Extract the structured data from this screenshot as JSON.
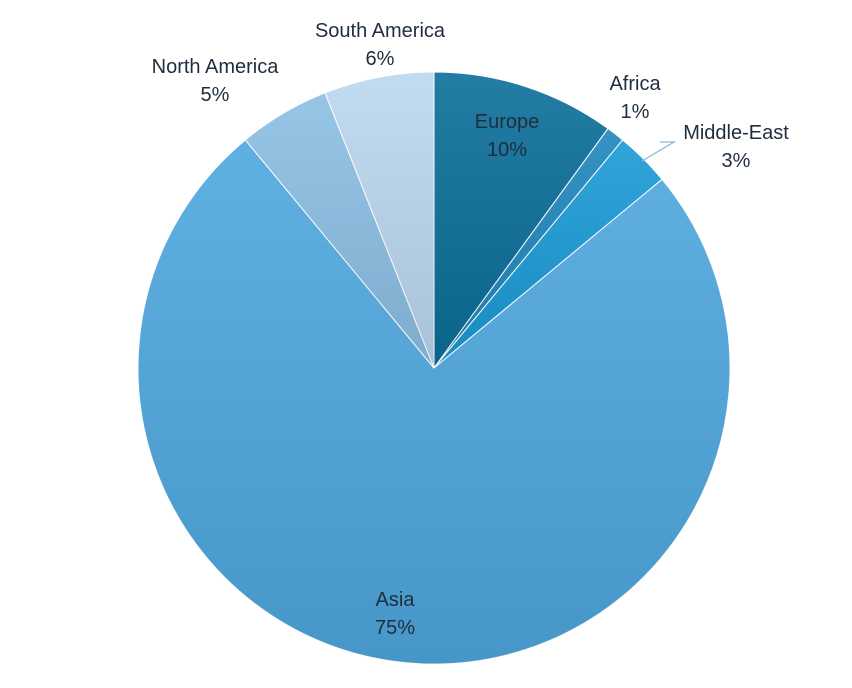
{
  "chart_data": {
    "type": "pie",
    "title": "",
    "start_angle_deg": 0,
    "direction": "clockwise",
    "legend": "none",
    "slices": [
      {
        "label": "Europe",
        "value": 10,
        "display": "10%",
        "color": "#0b6e99"
      },
      {
        "label": "Africa",
        "value": 1,
        "display": "1%",
        "color": "#1f87bd"
      },
      {
        "label": "Middle-East",
        "value": 3,
        "display": "3%",
        "color": "#1a9ad6"
      },
      {
        "label": "Asia",
        "value": 75,
        "display": "75%",
        "color": "#4ea7df"
      },
      {
        "label": "North America",
        "value": 5,
        "display": "5%",
        "color": "#8bbfe4"
      },
      {
        "label": "South America",
        "value": 6,
        "display": "6%",
        "color": "#bcd7ef"
      }
    ]
  }
}
